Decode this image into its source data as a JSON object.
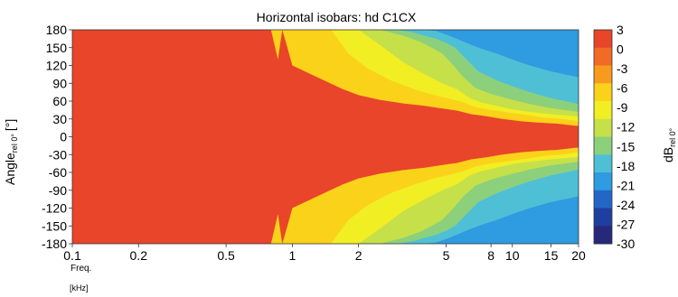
{
  "chart_data": {
    "type": "heatmap",
    "title": "Horizontal isobars: hd C1CX",
    "xlabel": "Freq. [kHz]",
    "x_unit_label": "[kHz]",
    "x_freq_label": "Freq.",
    "ylabel_main": "Angle",
    "ylabel_sub": "rel 0°",
    "ylabel_unit": "[°]",
    "colorbar_label_main": "dB",
    "colorbar_label_sub": "rel 0°",
    "x_scale": "log",
    "xlim": [
      0.1,
      20
    ],
    "ylim": [
      -180,
      180
    ],
    "x_ticks": [
      0.1,
      0.2,
      0.5,
      1,
      2,
      5,
      8,
      10,
      15,
      20
    ],
    "x_tick_labels": [
      "0.1",
      "0.2",
      "0.5",
      "1",
      "2",
      "5",
      "8",
      "10",
      "15",
      "20"
    ],
    "y_ticks": [
      180,
      150,
      120,
      90,
      60,
      30,
      0,
      -30,
      -60,
      -90,
      -120,
      -150,
      -180
    ],
    "y_tick_labels": [
      "180",
      "150",
      "120",
      "90",
      "60",
      "30",
      "0",
      "-30",
      "-60",
      "-90",
      "-120",
      "-150",
      "-180"
    ],
    "colorbar_levels": [
      3,
      0,
      -3,
      -6,
      -9,
      -12,
      -15,
      -18,
      -21,
      -24,
      -27,
      -30
    ],
    "colorbar_labels": [
      "3",
      "0",
      "-3",
      "-6",
      "-9",
      "-12",
      "-15",
      "-18",
      "-21",
      "-24",
      "-27",
      "-30"
    ],
    "colorbar_colors": [
      "#e8452a",
      "#f26b24",
      "#f79a1d",
      "#fbd21a",
      "#f2ee24",
      "#c6e04a",
      "#8dd07c",
      "#4fbfd6",
      "#2f9be0",
      "#2466c7",
      "#1f3f9e",
      "#26287a"
    ],
    "contours_abs_angle_deg": [
      {
        "level_dB": -3,
        "freq_kHz": [
          0.1,
          0.8,
          0.86,
          0.9,
          0.95,
          1.0,
          1.3,
          1.7,
          2.0,
          2.5,
          3.2,
          4.0,
          4.7,
          5.6,
          6.5,
          7.5,
          9.0,
          11.0,
          13.0,
          16.0,
          20.0
        ],
        "angle_deg": [
          180,
          180,
          130,
          180,
          150,
          120,
          100,
          80,
          70,
          62,
          56,
          52,
          48,
          44,
          38,
          35,
          30,
          26,
          24,
          22,
          18
        ]
      },
      {
        "level_dB": -6,
        "freq_kHz": [
          1.5,
          1.8,
          2.2,
          2.8,
          3.6,
          4.4,
          5.2,
          6.0,
          6.8,
          8.0,
          10.0,
          12.0,
          14.0,
          17.0,
          20.0
        ],
        "angle_deg": [
          180,
          140,
          115,
          95,
          80,
          70,
          64,
          58,
          50,
          45,
          40,
          36,
          32,
          30,
          26
        ]
      },
      {
        "level_dB": -9,
        "freq_kHz": [
          2.0,
          2.6,
          3.2,
          4.0,
          4.8,
          5.6,
          6.4,
          7.2,
          8.5,
          10.0,
          12.0,
          15.0,
          20.0
        ],
        "angle_deg": [
          180,
          150,
          125,
          105,
          90,
          80,
          65,
          58,
          52,
          46,
          42,
          38,
          34
        ]
      },
      {
        "level_dB": -12,
        "freq_kHz": [
          2.5,
          3.2,
          3.8,
          4.3,
          4.8,
          5.4,
          6.0,
          6.8,
          8.0,
          10.0,
          12.0,
          15.0,
          20.0
        ],
        "angle_deg": [
          180,
          170,
          160,
          150,
          140,
          120,
          100,
          82,
          72,
          62,
          55,
          48,
          42
        ]
      },
      {
        "level_dB": -15,
        "freq_kHz": [
          3.0,
          3.5,
          4.0,
          4.5,
          5.0,
          5.5,
          6.0,
          7.0,
          8.5,
          10.0,
          12.0,
          15.0,
          20.0
        ],
        "angle_deg": [
          180,
          176,
          170,
          165,
          158,
          150,
          135,
          110,
          95,
          85,
          75,
          65,
          55
        ]
      },
      {
        "level_dB": -18,
        "freq_kHz": [
          4.0,
          4.5,
          5.0,
          5.5,
          6.0,
          7.0,
          8.5,
          10.0,
          12.0,
          15.0,
          20.0
        ],
        "angle_deg": [
          180,
          178,
          172,
          166,
          160,
          150,
          140,
          130,
          120,
          110,
          100
        ]
      }
    ]
  }
}
